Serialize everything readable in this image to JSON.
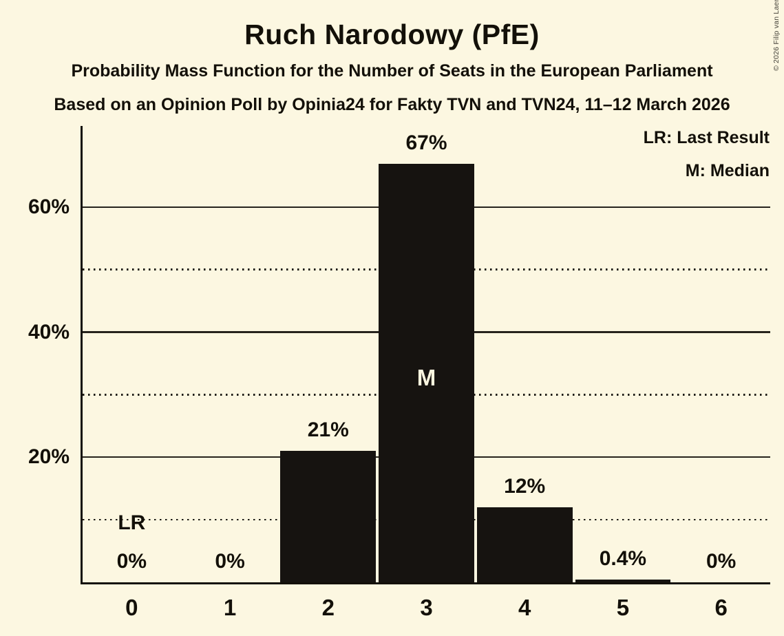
{
  "header": {
    "title": "Ruch Narodowy (PfE)",
    "subtitle": "Probability Mass Function for the Number of Seats in the European Parliament",
    "source_line": "Based on an Opinion Poll by Opinia24 for Fakty TVN and TVN24, 11–12 March 2026"
  },
  "legend": {
    "last_result": "LR: Last Result",
    "median": "M: Median"
  },
  "copyright": "© 2026 Filip van Laenen",
  "colors": {
    "background": "#FCF7E1",
    "bar": "#161310",
    "text": "#131009",
    "median_text": "#FAF5DF"
  },
  "chart_data": {
    "type": "bar",
    "title": "Ruch Narodowy (PfE)",
    "categories": [
      "0",
      "1",
      "2",
      "3",
      "4",
      "5",
      "6"
    ],
    "values": [
      0,
      0,
      21,
      67,
      12,
      0.4,
      0
    ],
    "bar_labels": [
      "0%",
      "0%",
      "21%",
      "67%",
      "12%",
      "0.4%",
      "0%"
    ],
    "xlabel": "",
    "ylabel": "",
    "ylim": [
      0,
      73
    ],
    "yticks": [
      {
        "value": 20,
        "label": "20%"
      },
      {
        "value": 40,
        "label": "40%"
      },
      {
        "value": 60,
        "label": "60%"
      }
    ],
    "solid_gridlines": [
      20,
      40,
      60
    ],
    "dotted_gridlines": [
      10,
      30,
      50
    ],
    "grid": "horizontal-only",
    "legend_position": "top-right",
    "annotations": {
      "median_category": "3",
      "median_marker": "M",
      "last_result_category": "0",
      "last_result_marker": "LR"
    }
  }
}
